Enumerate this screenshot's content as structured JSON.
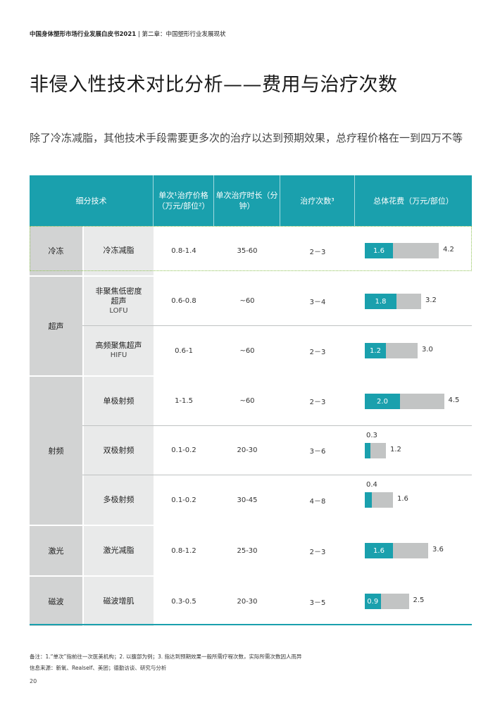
{
  "header": {
    "report_title": "中国身体塑形市场行业发展白皮书2021",
    "separator": "|",
    "chapter": "第二章：中国塑形行业发展现状"
  },
  "title": "非侵入性技术对比分析——费用与治疗次数",
  "subtitle": "除了冷冻减脂，其他技术手段需要更多次的治疗以达到预期效果，总疗程价格在一到四万不等",
  "table": {
    "headers": {
      "tech": "细分技术",
      "price": "单次¹治疗价格（万元/部位²）",
      "duration": "单次治疗时长（分钟）",
      "count": "治疗次数³",
      "total": "总体花费（万元/部位）"
    },
    "groups": [
      {
        "name": "冷冻",
        "rows": [
          {
            "tech": "冷冻减脂",
            "tech_en": "",
            "price": "0.8-1.4",
            "duration": "35-60",
            "count": "2－3",
            "min": 1.6,
            "max": 4.2,
            "min_label": "1.6",
            "max_label": "4.2"
          }
        ]
      },
      {
        "name": "超声",
        "rows": [
          {
            "tech": "非聚焦低密度超声",
            "tech_en": "LOFU",
            "price": "0.6-0.8",
            "duration": "~60",
            "count": "3－4",
            "min": 1.8,
            "max": 3.2,
            "min_label": "1.8",
            "max_label": "3.2"
          },
          {
            "tech": "高频聚焦超声",
            "tech_en": "HIFU",
            "price": "0.6-1",
            "duration": "~60",
            "count": "2－3",
            "min": 1.2,
            "max": 3.0,
            "min_label": "1.2",
            "max_label": "3.0"
          }
        ]
      },
      {
        "name": "射频",
        "rows": [
          {
            "tech": "单极射频",
            "tech_en": "",
            "price": "1-1.5",
            "duration": "~60",
            "count": "2－3",
            "min": 2.0,
            "max": 4.5,
            "min_label": "2.0",
            "max_label": "4.5"
          },
          {
            "tech": "双极射频",
            "tech_en": "",
            "price": "0.1-0.2",
            "duration": "20-30",
            "count": "3－6",
            "min": 0.3,
            "max": 1.2,
            "min_label": "0.3",
            "max_label": "1.2"
          },
          {
            "tech": "多极射频",
            "tech_en": "",
            "price": "0.1-0.2",
            "duration": "30-45",
            "count": "4－8",
            "min": 0.4,
            "max": 1.6,
            "min_label": "0.4",
            "max_label": "1.6"
          }
        ]
      },
      {
        "name": "激光",
        "rows": [
          {
            "tech": "激光减脂",
            "tech_en": "",
            "price": "0.8-1.2",
            "duration": "25-30",
            "count": "2－3",
            "min": 1.6,
            "max": 3.6,
            "min_label": "1.6",
            "max_label": "3.6"
          }
        ]
      },
      {
        "name": "磁波",
        "rows": [
          {
            "tech": "磁波增肌",
            "tech_en": "",
            "price": "0.3-0.5",
            "duration": "20-30",
            "count": "3－5",
            "min": 0.9,
            "max": 2.5,
            "min_label": "0.9",
            "max_label": "2.5"
          }
        ]
      }
    ]
  },
  "colors": {
    "accent": "#1aa0ad",
    "bar_gray": "#c2c4c4",
    "highlight": "#8cc152"
  },
  "notes": {
    "line1": "备注：1.“单次”指前往一次医美机构；2. 以腹部为例；3. 指达到预期效果一般所需疗程次数，实际所需次数因人而异",
    "line2": "信息来源：新氧、Realself、美团；德勤访谈、研究与分析"
  },
  "page_number": "20"
}
